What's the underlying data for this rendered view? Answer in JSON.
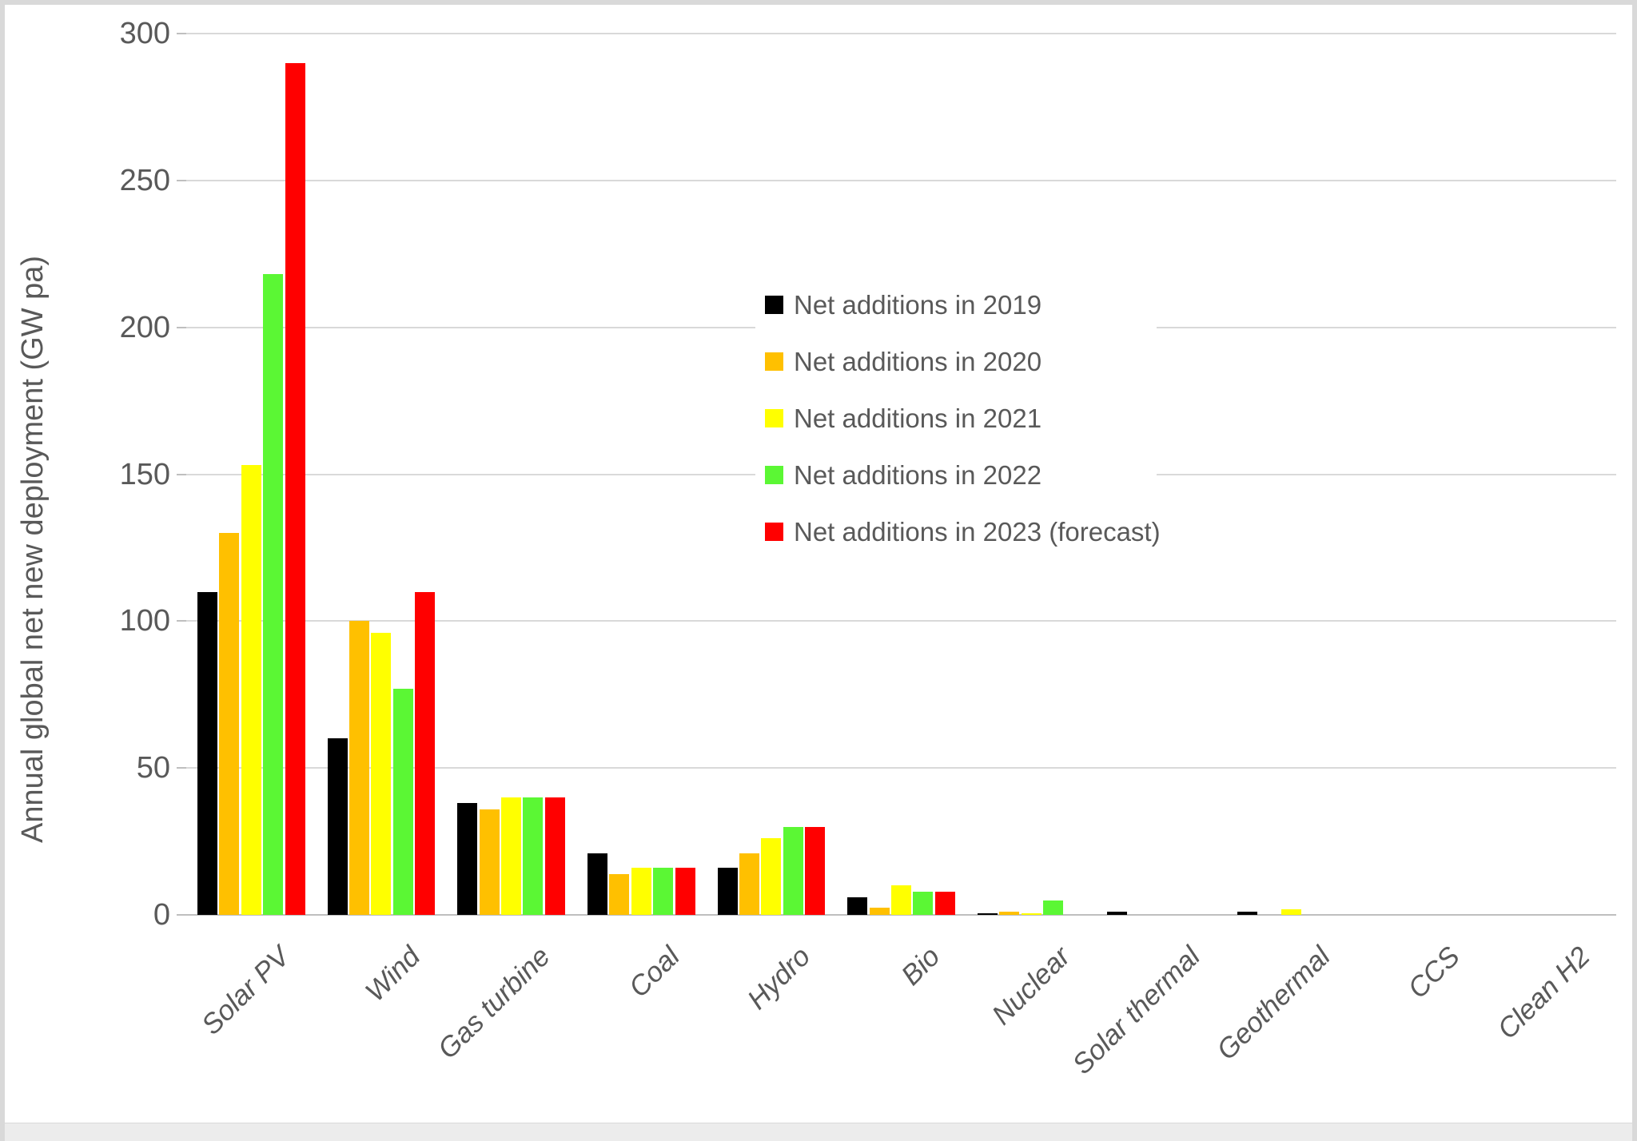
{
  "chart_data": {
    "type": "bar",
    "title": "",
    "xlabel": "",
    "ylabel": "Annual global net new deployment (GW pa)",
    "ylim": [
      0,
      300
    ],
    "yticks": [
      0,
      50,
      100,
      150,
      200,
      250,
      300
    ],
    "grid": true,
    "legend_position": "upper-middle",
    "categories": [
      "Solar PV",
      "Wind",
      "Gas turbine",
      "Coal",
      "Hydro",
      "Bio",
      "Nuclear",
      "Solar thermal",
      "Geothermal",
      "CCS",
      "Clean H2"
    ],
    "series": [
      {
        "name": "Net additions in 2019",
        "color": "#000000",
        "values": [
          110,
          60,
          38,
          21,
          16,
          6,
          0.5,
          1,
          1,
          0,
          0
        ]
      },
      {
        "name": "Net additions in 2020",
        "color": "#ffc000",
        "values": [
          130,
          100,
          36,
          14,
          21,
          2.5,
          1,
          0,
          0,
          0,
          0
        ]
      },
      {
        "name": "Net additions in 2021",
        "color": "#ffff00",
        "values": [
          153,
          96,
          40,
          16,
          26,
          10,
          0.5,
          0,
          2,
          0,
          0
        ]
      },
      {
        "name": "Net additions in 2022",
        "color": "#5bf734",
        "values": [
          218,
          77,
          40,
          16,
          30,
          8,
          5,
          0,
          0,
          0,
          0
        ]
      },
      {
        "name": "Net additions in 2023 (forecast)",
        "color": "#ff0000",
        "values": [
          290,
          110,
          40,
          16,
          30,
          8,
          0,
          0,
          0,
          0,
          0
        ]
      }
    ]
  },
  "axis": {
    "y_title": "Annual global net new deployment (GW pa)"
  },
  "colors": {
    "gridline": "#d9d9d9",
    "axis_line": "#bfbfbf",
    "tick_text": "#595959",
    "legend_text": "#595959"
  }
}
